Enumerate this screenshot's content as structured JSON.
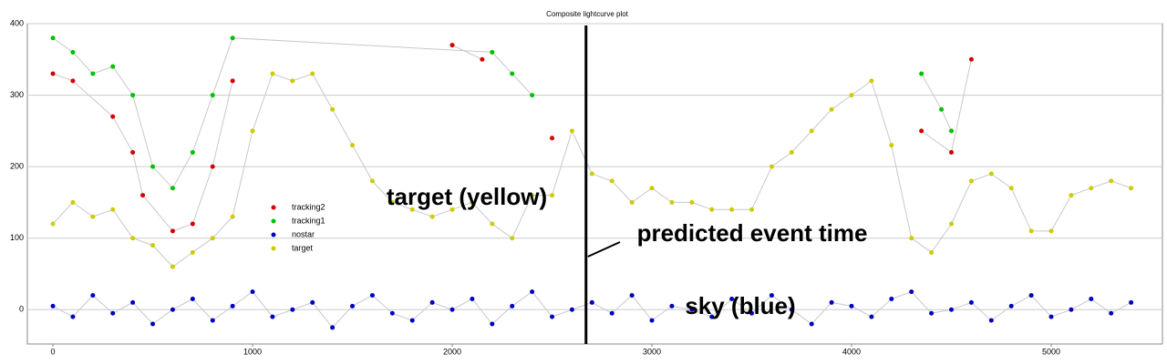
{
  "chart_data": {
    "type": "scatter",
    "title": "Composite lightcurve plot",
    "xlim": [
      -128,
      5557
    ],
    "ylim": [
      -48,
      400
    ],
    "xticks": [
      0,
      1000,
      2000,
      3000,
      4000,
      5000
    ],
    "yticks": [
      0,
      100,
      200,
      300,
      400
    ],
    "grid": true,
    "legend": "center-left",
    "line_color": "#c8c8c8",
    "event_x": 2670,
    "annotations": [
      "target (yellow)",
      "predicted event time",
      "sky (blue)"
    ],
    "series": [
      {
        "name": "tracking2",
        "color": "#d40000",
        "x": [
          0,
          100,
          300,
          400,
          450,
          600,
          700,
          800,
          900,
          1850,
          2000,
          2150,
          2400,
          2500,
          2950,
          4350,
          4500,
          4600,
          5100
        ],
        "values": [
          330,
          320,
          270,
          220,
          160,
          110,
          120,
          200,
          320,
          null,
          370,
          350,
          null,
          240,
          null,
          250,
          220,
          350,
          null
        ]
      },
      {
        "name": "tracking1",
        "color": "#00c000",
        "x": [
          0,
          100,
          200,
          300,
          400,
          500,
          600,
          700,
          800,
          900,
          2200,
          2300,
          2400,
          2950,
          3400,
          4350,
          4450,
          4500,
          5000
        ],
        "values": [
          380,
          360,
          330,
          340,
          300,
          200,
          170,
          220,
          300,
          380,
          360,
          330,
          300,
          null,
          null,
          330,
          280,
          250,
          null
        ]
      },
      {
        "name": "nostar",
        "color": "#0000c0",
        "x": [
          0,
          100,
          200,
          300,
          400,
          500,
          600,
          700,
          800,
          900,
          1000,
          1100,
          1200,
          1300,
          1400,
          1500,
          1600,
          1700,
          1800,
          1900,
          2000,
          2100,
          2200,
          2300,
          2400,
          2500,
          2600,
          2700,
          2800,
          2900,
          3000,
          3100,
          3200,
          3300,
          3400,
          3500,
          3600,
          3700,
          3800,
          3900,
          4000,
          4100,
          4200,
          4300,
          4400,
          4500,
          4600,
          4700,
          4800,
          4900,
          5000,
          5100,
          5200,
          5300,
          5400
        ],
        "values": [
          5,
          -10,
          20,
          -5,
          10,
          -20,
          0,
          15,
          -15,
          5,
          25,
          -10,
          0,
          10,
          -25,
          5,
          20,
          -5,
          -15,
          10,
          0,
          15,
          -20,
          5,
          25,
          -10,
          0,
          10,
          -5,
          20,
          -15,
          5,
          0,
          -10,
          15,
          -5,
          20,
          0,
          -20,
          10,
          5,
          -10,
          15,
          25,
          -5,
          0,
          10,
          -15,
          5,
          20,
          -10,
          0,
          15,
          -5,
          10
        ]
      },
      {
        "name": "target",
        "color": "#cccc00",
        "x": [
          0,
          100,
          200,
          300,
          400,
          500,
          600,
          700,
          800,
          900,
          1000,
          1100,
          1200,
          1300,
          1400,
          1500,
          1600,
          1700,
          1800,
          1900,
          2000,
          2100,
          2200,
          2300,
          2400,
          2500,
          2600,
          2700,
          2800,
          2900,
          3000,
          3100,
          3200,
          3300,
          3400,
          3500,
          3600,
          3700,
          3800,
          3900,
          4000,
          4100,
          4200,
          4300,
          4400,
          4500,
          4600,
          4700,
          4800,
          4900,
          5000,
          5100,
          5200,
          5300,
          5400
        ],
        "values": [
          120,
          150,
          130,
          140,
          100,
          90,
          60,
          80,
          100,
          130,
          250,
          330,
          320,
          330,
          280,
          230,
          180,
          150,
          140,
          130,
          140,
          150,
          120,
          100,
          160,
          160,
          250,
          190,
          180,
          150,
          170,
          150,
          150,
          140,
          140,
          140,
          200,
          220,
          250,
          280,
          300,
          320,
          230,
          100,
          80,
          120,
          180,
          190,
          170,
          110,
          110,
          160,
          170,
          180,
          170
        ]
      }
    ]
  }
}
